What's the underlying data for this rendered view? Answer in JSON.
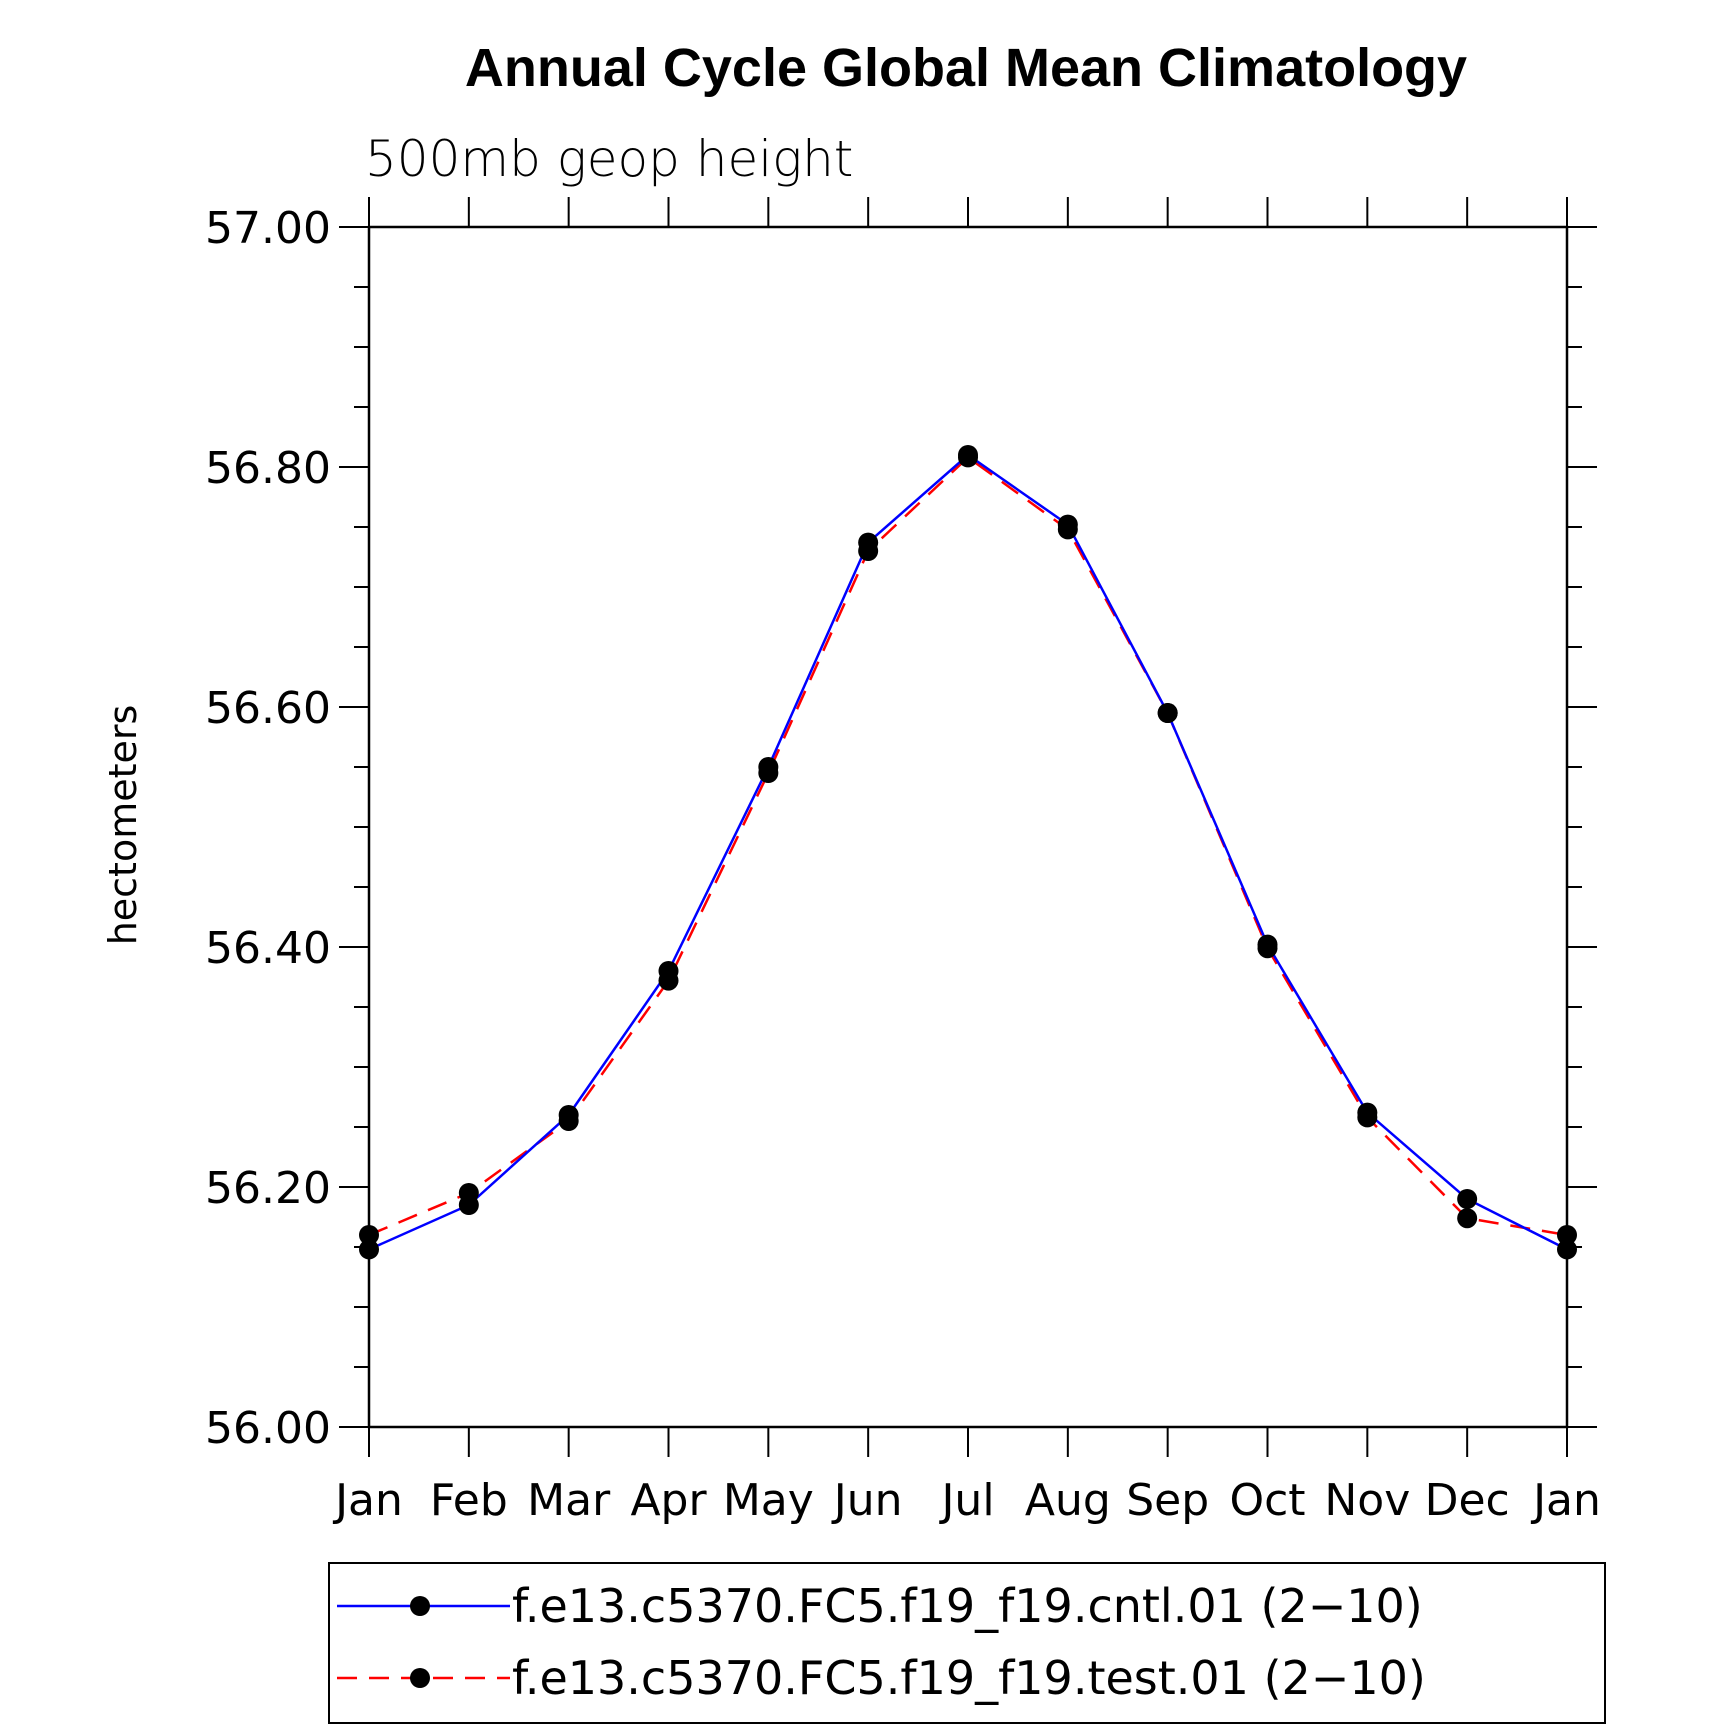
{
  "chart_data": {
    "type": "line",
    "title": "Annual Cycle Global Mean Climatology",
    "subtitle": "500mb geop height",
    "ylabel": "hectometers",
    "xlabel": "",
    "categories": [
      "Jan",
      "Feb",
      "Mar",
      "Apr",
      "May",
      "Jun",
      "Jul",
      "Aug",
      "Sep",
      "Oct",
      "Nov",
      "Dec",
      "Jan"
    ],
    "ylim": [
      56.0,
      57.0
    ],
    "yticks": [
      "56.00",
      "56.20",
      "56.40",
      "56.60",
      "56.80",
      "57.00"
    ],
    "ytick_values": [
      56.0,
      56.2,
      56.4,
      56.6,
      56.8,
      57.0
    ],
    "minor_ytick_step": 0.05,
    "series": [
      {
        "name": "f.e13.c5370.FC5.f19_f19.cntl.01 (2−10)",
        "color": "#0000ff",
        "dash": "solid",
        "marker": "filled-circle",
        "values": [
          56.148,
          56.185,
          56.26,
          56.38,
          56.55,
          56.737,
          56.81,
          56.752,
          56.595,
          56.402,
          56.262,
          56.19,
          56.148
        ]
      },
      {
        "name": "f.e13.c5370.FC5.f19_f19.test.01 (2−10)",
        "color": "#ff0000",
        "dash": "dashed",
        "marker": "filled-circle",
        "values": [
          56.16,
          56.195,
          56.255,
          56.372,
          56.545,
          56.73,
          56.808,
          56.748,
          56.595,
          56.399,
          56.258,
          56.174,
          56.16
        ]
      }
    ],
    "legend_position": "bottom"
  }
}
